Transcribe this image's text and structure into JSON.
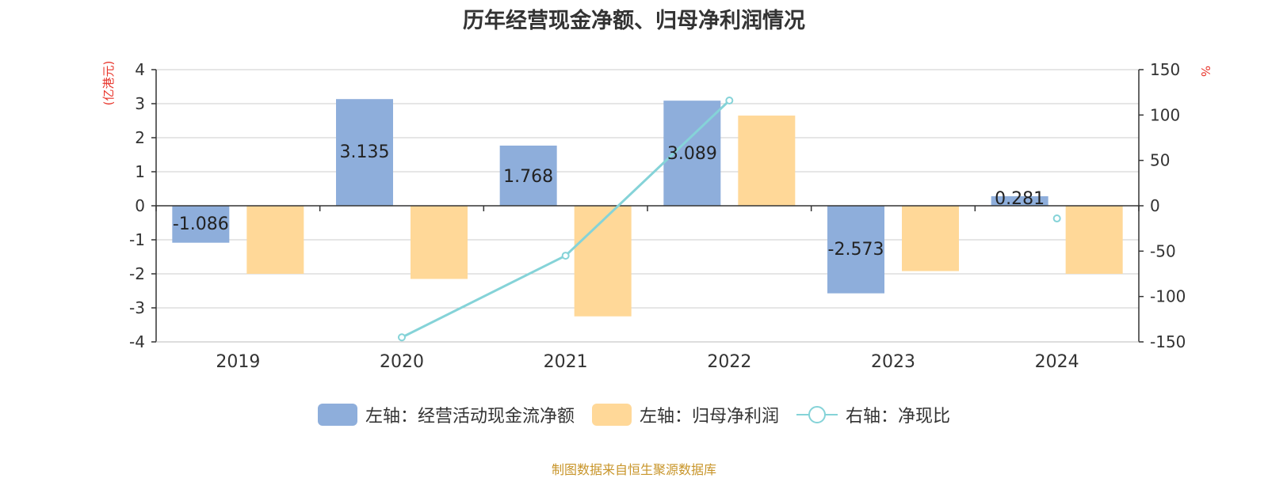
{
  "chart_data": {
    "type": "bar",
    "title": "历年经营现金净额、归母净利润情况",
    "categories": [
      "2019",
      "2020",
      "2021",
      "2022",
      "2023",
      "2024"
    ],
    "series": [
      {
        "name": "左轴：经营活动现金流净额",
        "axis": "left",
        "type": "bar",
        "color": "#8eaedb",
        "values": [
          -1.086,
          3.135,
          1.768,
          3.089,
          -2.573,
          0.281
        ],
        "labels": [
          "-1.086",
          "3.135",
          "1.768",
          "3.089",
          "-2.573",
          "0.281"
        ]
      },
      {
        "name": "左轴：归母净利润",
        "axis": "left",
        "type": "bar",
        "color": "#ffd898",
        "values": [
          -2.0,
          -2.15,
          -3.25,
          2.65,
          -1.92,
          -2.0
        ]
      },
      {
        "name": "右轴：净现比",
        "axis": "right",
        "type": "line",
        "color": "#85d3d8",
        "values": [
          null,
          -145,
          -55,
          116,
          null,
          -14
        ]
      }
    ],
    "y_left": {
      "label": "(亿港元)",
      "min": -4,
      "max": 4,
      "ticks": [
        "-4",
        "-3",
        "-2",
        "-1",
        "0",
        "1",
        "2",
        "3",
        "4"
      ]
    },
    "y_right": {
      "label": "%",
      "min": -150,
      "max": 150,
      "ticks": [
        "-150",
        "-100",
        "-50",
        "0",
        "50",
        "100",
        "150"
      ]
    },
    "grid": true,
    "legend_position": "bottom",
    "axis_label_color": "#e8352b"
  },
  "source": {
    "text": "制图数据来自恒生聚源数据库",
    "color": "#c8952a"
  }
}
